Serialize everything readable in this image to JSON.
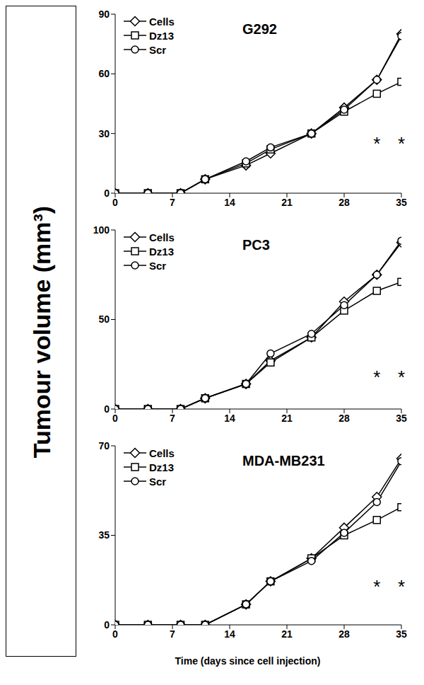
{
  "ylabel": "Tumour volume (mm³)",
  "xlabel": "Time (days since cell injection)",
  "chart_data": [
    {
      "type": "line",
      "title": "G292",
      "legend": "upper left",
      "x": [
        0,
        4,
        8,
        11,
        16,
        19,
        24,
        28,
        32,
        35
      ],
      "xlim": [
        0,
        35
      ],
      "xticks": [
        0,
        7,
        14,
        21,
        28,
        35
      ],
      "ylim": [
        0,
        90
      ],
      "yticks": [
        0,
        30,
        60,
        90
      ],
      "series": [
        {
          "name": "Cells",
          "color": "#000000",
          "marker": "diamond",
          "values": [
            0,
            0,
            0,
            7,
            14,
            20,
            30,
            43,
            57,
            80
          ]
        },
        {
          "name": "Dz13",
          "color": "#000000",
          "marker": "square",
          "values": [
            0,
            0,
            0,
            7,
            15,
            22,
            30,
            41,
            50,
            56
          ]
        },
        {
          "name": "Scr",
          "color": "#000000",
          "marker": "circle",
          "values": [
            0,
            0,
            0,
            7,
            16,
            23,
            30,
            42,
            57,
            79
          ]
        }
      ],
      "annotations": [
        {
          "x": 32,
          "y": 25,
          "text": "*"
        },
        {
          "x": 35,
          "y": 25,
          "text": "*"
        }
      ]
    },
    {
      "type": "line",
      "title": "PC3",
      "legend": "upper left",
      "x": [
        0,
        4,
        8,
        11,
        16,
        19,
        24,
        28,
        32,
        35
      ],
      "xlim": [
        0,
        35
      ],
      "xticks": [
        0,
        7,
        14,
        21,
        28,
        35
      ],
      "ylim": [
        0,
        100
      ],
      "yticks": [
        0,
        50,
        100
      ],
      "series": [
        {
          "name": "Cells",
          "color": "#000000",
          "marker": "diamond",
          "values": [
            0,
            0,
            0,
            6,
            14,
            27,
            40,
            60,
            75,
            93
          ]
        },
        {
          "name": "Dz13",
          "color": "#000000",
          "marker": "square",
          "values": [
            0,
            0,
            0,
            6,
            14,
            26,
            40,
            55,
            66,
            71
          ]
        },
        {
          "name": "Scr",
          "color": "#000000",
          "marker": "circle",
          "values": [
            0,
            0,
            0,
            6,
            14,
            31,
            42,
            58,
            75,
            94
          ]
        }
      ],
      "annotations": [
        {
          "x": 32,
          "y": 18,
          "text": "*"
        },
        {
          "x": 35,
          "y": 18,
          "text": "*"
        }
      ]
    },
    {
      "type": "line",
      "title": "MDA-MB231",
      "legend": "upper left",
      "x": [
        0,
        4,
        8,
        11,
        16,
        19,
        24,
        28,
        32,
        35
      ],
      "xlim": [
        0,
        35
      ],
      "xticks": [
        0,
        7,
        14,
        21,
        28,
        35
      ],
      "ylim": [
        0,
        70
      ],
      "yticks": [
        0,
        35,
        70
      ],
      "series": [
        {
          "name": "Cells",
          "color": "#000000",
          "marker": "diamond",
          "values": [
            0,
            0,
            0,
            0,
            8,
            17,
            26,
            38,
            50,
            65
          ]
        },
        {
          "name": "Dz13",
          "color": "#000000",
          "marker": "square",
          "values": [
            0,
            0,
            0,
            0,
            8,
            17,
            26,
            35,
            41,
            46
          ]
        },
        {
          "name": "Scr",
          "color": "#000000",
          "marker": "circle",
          "values": [
            0,
            0,
            0,
            0,
            8,
            17,
            25,
            36,
            48,
            64
          ]
        }
      ],
      "annotations": [
        {
          "x": 32,
          "y": 15,
          "text": "*"
        },
        {
          "x": 35,
          "y": 15,
          "text": "*"
        }
      ]
    }
  ]
}
